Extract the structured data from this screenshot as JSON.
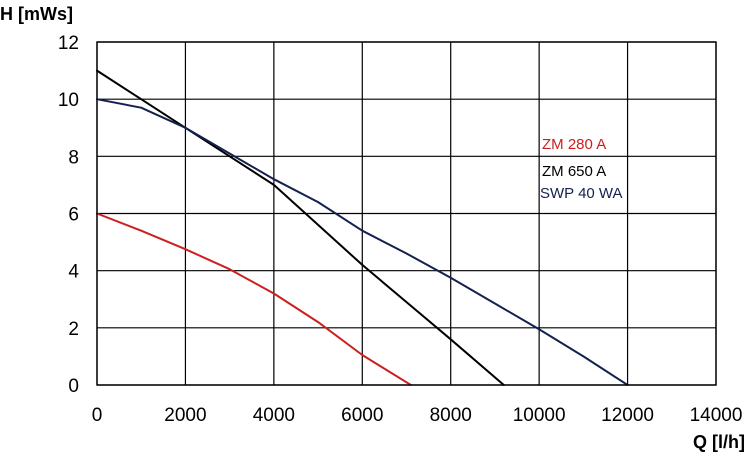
{
  "chart_data": {
    "type": "line",
    "xlabel": "Q [l/h]",
    "ylabel": "H [mWs]",
    "xlim": [
      0,
      14000
    ],
    "ylim": [
      0,
      12
    ],
    "x_ticks": [
      0,
      2000,
      4000,
      6000,
      8000,
      10000,
      12000,
      14000
    ],
    "y_ticks": [
      0,
      2,
      4,
      6,
      8,
      10,
      12
    ],
    "grid": true,
    "legend_position": "right",
    "series": [
      {
        "name": "ZM 280 A",
        "color": "#cc1f1f",
        "points": [
          [
            0,
            6.0
          ],
          [
            1000,
            5.4
          ],
          [
            2000,
            4.75
          ],
          [
            3000,
            4.05
          ],
          [
            4000,
            3.2
          ],
          [
            5000,
            2.2
          ],
          [
            6000,
            1.05
          ],
          [
            7100,
            0.0
          ]
        ]
      },
      {
        "name": "ZM 650 A",
        "color": "#000000",
        "points": [
          [
            0,
            11.0
          ],
          [
            1000,
            10.0
          ],
          [
            2000,
            9.0
          ],
          [
            3000,
            8.0
          ],
          [
            4000,
            7.0
          ],
          [
            5000,
            5.6
          ],
          [
            6000,
            4.2
          ],
          [
            7000,
            2.9
          ],
          [
            8000,
            1.6
          ],
          [
            9200,
            0.0
          ]
        ]
      },
      {
        "name": "SWP 40 WA",
        "color": "#14214f",
        "points": [
          [
            0,
            10.0
          ],
          [
            1000,
            9.7
          ],
          [
            2000,
            9.0
          ],
          [
            3000,
            8.1
          ],
          [
            4000,
            7.2
          ],
          [
            5000,
            6.4
          ],
          [
            6000,
            5.4
          ],
          [
            7000,
            4.6
          ],
          [
            8000,
            3.75
          ],
          [
            9000,
            2.85
          ],
          [
            10000,
            1.95
          ],
          [
            11000,
            1.0
          ],
          [
            12000,
            0.0
          ]
        ]
      }
    ]
  }
}
